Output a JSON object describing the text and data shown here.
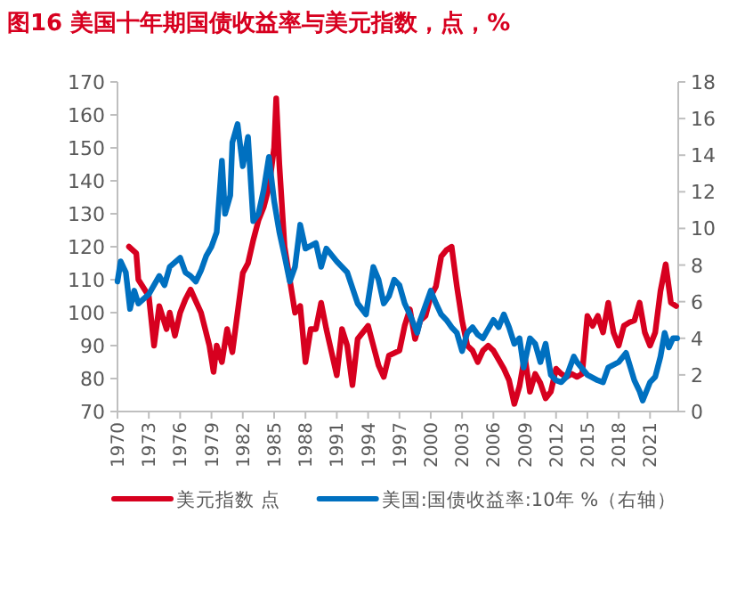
{
  "chart_data": {
    "type": "line",
    "title": "图16  美国十年期国债收益率与美元指数，点，%",
    "legend": "bottom",
    "line_style": "solid",
    "xlim": [
      1970,
      2023.7
    ],
    "xticks": [
      1970,
      1973,
      1976,
      1979,
      1982,
      1985,
      1988,
      1991,
      1994,
      1997,
      2000,
      2003,
      2006,
      2009,
      2012,
      2015,
      2018,
      2021
    ],
    "ylim": [
      70,
      170
    ],
    "yticks": [
      70,
      80,
      90,
      100,
      110,
      120,
      130,
      140,
      150,
      160,
      170
    ],
    "y2lim": [
      0,
      18
    ],
    "y2ticks": [
      0,
      2,
      4,
      6,
      8,
      10,
      12,
      14,
      16,
      18
    ],
    "series": [
      {
        "name": "美元指数 点",
        "color": "#d7001f",
        "x": [
          1971.1,
          1971.8,
          1972,
          1973,
          1973.5,
          1974,
          1974.7,
          1975,
          1975.5,
          1976,
          1976.5,
          1977,
          1978,
          1978.8,
          1979.2,
          1979.5,
          1980,
          1980.5,
          1981,
          1981.5,
          1982,
          1982.5,
          1983,
          1983.5,
          1984,
          1984.5,
          1985,
          1985.2,
          1985.5,
          1986,
          1986.5,
          1987,
          1987.5,
          1988,
          1988.5,
          1989,
          1989.5,
          1990,
          1990.5,
          1991,
          1991.5,
          1992,
          1992.5,
          1993,
          1994,
          1994.5,
          1995,
          1995.5,
          1996,
          1997,
          1997.5,
          1998,
          1998.5,
          1999,
          1999.5,
          2000,
          2000.5,
          2001,
          2001.5,
          2002,
          2002.5,
          2003,
          2003.5,
          2004,
          2004.5,
          2005,
          2005.5,
          2006,
          2007,
          2007.5,
          2008,
          2008.5,
          2009,
          2009.5,
          2010,
          2010.5,
          2011,
          2011.5,
          2012,
          2012.5,
          2013,
          2013.5,
          2014,
          2014.5,
          2015,
          2015.5,
          2016,
          2016.5,
          2017,
          2017.5,
          2018,
          2018.5,
          2019,
          2019.5,
          2020,
          2020.5,
          2021,
          2021.5,
          2022,
          2022.5,
          2023,
          2023.5
        ],
        "values": [
          120,
          118,
          110,
          105,
          90,
          102,
          95,
          100,
          93,
          100,
          104,
          107,
          100,
          90,
          82,
          90,
          85,
          95,
          88,
          100,
          112,
          115,
          122,
          128,
          132,
          138,
          150,
          165,
          145,
          120,
          110,
          100,
          102,
          85,
          95,
          95,
          103,
          95,
          88,
          81,
          95,
          90,
          78,
          92,
          96,
          90,
          84,
          80.5,
          87,
          88.5,
          96,
          101,
          92,
          97.6,
          99,
          105,
          108,
          117,
          119,
          120,
          108,
          97.6,
          90,
          88.5,
          85,
          88.5,
          90,
          88.5,
          83,
          79.5,
          72.3,
          77.7,
          86.8,
          76,
          81.4,
          78.6,
          74,
          76,
          83,
          81.4,
          80.5,
          81.4,
          80.5,
          81.4,
          99,
          96,
          99,
          94,
          103,
          94,
          90,
          96,
          97,
          97.6,
          103,
          94,
          90,
          94,
          106.6,
          114.7,
          103,
          102
        ]
      },
      {
        "name": "美国:国债收益率:10年 %（右轴）",
        "color": "#0070c0",
        "axis": "y2",
        "x": [
          1970,
          1970.3,
          1970.8,
          1971.2,
          1971.6,
          1972,
          1973,
          1974,
          1974.5,
          1975,
          1976,
          1976.5,
          1977,
          1977.5,
          1978,
          1978.5,
          1979,
          1979.5,
          1980,
          1980.3,
          1980.8,
          1981,
          1981.5,
          1982,
          1982.5,
          1983,
          1983.5,
          1984,
          1984.5,
          1985,
          1985.5,
          1986,
          1986.5,
          1987,
          1987.5,
          1988,
          1989,
          1989.5,
          1990,
          1991,
          1992,
          1993,
          1993.8,
          1994.5,
          1995,
          1995.5,
          1996,
          1996.5,
          1997,
          1997.5,
          1998,
          1998.7,
          1999,
          2000,
          2000.5,
          2001,
          2001.5,
          2002,
          2002.5,
          2003,
          2003.5,
          2004,
          2004.5,
          2005,
          2006,
          2006.5,
          2007,
          2007.5,
          2008,
          2008.5,
          2008.9,
          2009.5,
          2010,
          2010.5,
          2011,
          2011.5,
          2012,
          2012.5,
          2013,
          2013.7,
          2014,
          2015,
          2016,
          2016.5,
          2017,
          2018,
          2018.7,
          2019.5,
          2020,
          2020.3,
          2021,
          2021.5,
          2022,
          2022.4,
          2022.8,
          2023.2,
          2023.6
        ],
        "values": [
          7.1,
          8.2,
          7.6,
          5.6,
          6.6,
          5.9,
          6.4,
          7.4,
          6.9,
          7.9,
          8.4,
          7.6,
          7.4,
          7.1,
          7.7,
          8.5,
          9,
          9.8,
          13.7,
          10.8,
          11.8,
          14.7,
          15.7,
          13.4,
          15,
          10.4,
          10.8,
          12.1,
          13.9,
          11.5,
          9.8,
          8.5,
          7.1,
          7.9,
          10.2,
          8.9,
          9.2,
          7.9,
          8.9,
          8.2,
          7.6,
          5.9,
          5.3,
          7.9,
          7.2,
          5.9,
          6.3,
          7.2,
          6.9,
          5.9,
          5.3,
          4.3,
          5,
          6.6,
          5.9,
          5.3,
          5,
          4.6,
          4.3,
          3.3,
          4.3,
          4.6,
          4.2,
          4,
          5,
          4.6,
          5.3,
          4.6,
          3.7,
          4,
          2.4,
          4,
          3.7,
          2.7,
          3.7,
          2,
          1.7,
          1.6,
          1.9,
          3,
          2.7,
          2,
          1.7,
          1.6,
          2.4,
          2.7,
          3.2,
          1.7,
          1.1,
          0.6,
          1.6,
          1.9,
          3,
          4.3,
          3.5,
          4,
          4
        ]
      }
    ]
  }
}
